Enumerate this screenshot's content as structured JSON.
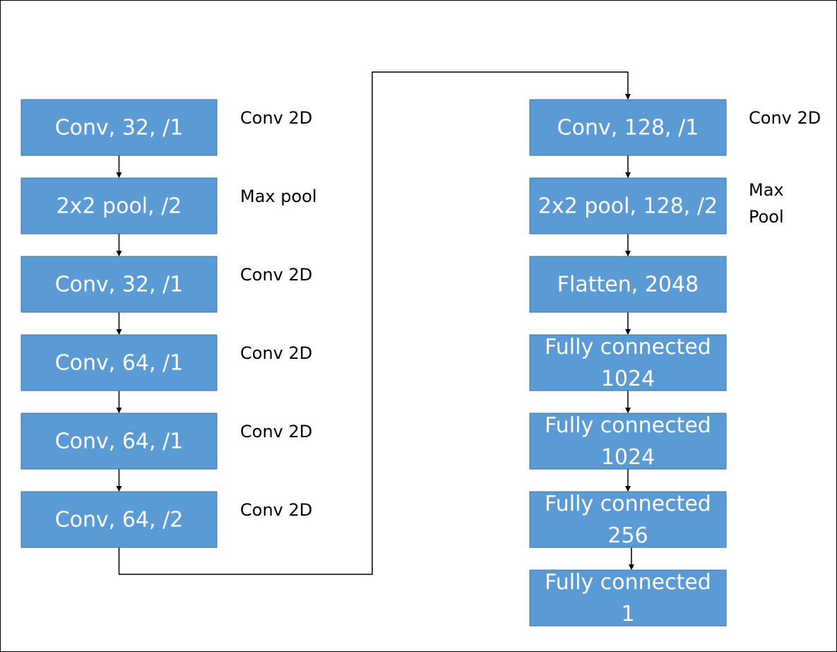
{
  "colors": {
    "box_fill": "#5b9bd5",
    "box_border": "#41719c",
    "line": "#000000"
  },
  "left_column": [
    {
      "box": "Conv, 32, /1",
      "label": [
        "Conv 2D"
      ]
    },
    {
      "box": "2x2 pool, /2",
      "label": [
        "Max pool"
      ]
    },
    {
      "box": "Conv, 32, /1",
      "label": [
        "Conv 2D"
      ]
    },
    {
      "box": "Conv, 64, /1",
      "label": [
        "Conv 2D"
      ]
    },
    {
      "box": "Conv, 64, /1",
      "label": [
        "Conv 2D"
      ]
    },
    {
      "box": "Conv, 64, /2",
      "label": [
        "Conv 2D"
      ]
    }
  ],
  "right_column": [
    {
      "box": [
        "Conv, 128, /1"
      ],
      "label": [
        "Conv 2D"
      ]
    },
    {
      "box": [
        "2x2 pool, 128, /2"
      ],
      "label": [
        "Max",
        "Pool"
      ]
    },
    {
      "box": [
        "Flatten, 2048"
      ],
      "label": []
    },
    {
      "box": [
        "Fully connected",
        "1024"
      ],
      "label": []
    },
    {
      "box": [
        "Fully connected",
        "1024"
      ],
      "label": []
    },
    {
      "box": [
        "Fully connected",
        "256"
      ],
      "label": []
    },
    {
      "box": [
        "Fully connected",
        "1"
      ],
      "label": []
    }
  ]
}
